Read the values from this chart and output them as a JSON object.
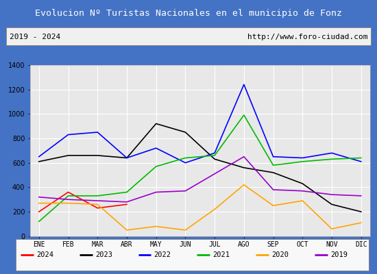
{
  "title": "Evolucion Nº Turistas Nacionales en el municipio de Fonz",
  "subtitle_left": "2019 - 2024",
  "subtitle_right": "http://www.foro-ciudad.com",
  "months": [
    "ENE",
    "FEB",
    "MAR",
    "ABR",
    "MAY",
    "JUN",
    "JUL",
    "AGO",
    "SEP",
    "OCT",
    "NOV",
    "DIC"
  ],
  "series": {
    "2024": [
      200,
      360,
      230,
      260,
      null,
      null,
      null,
      null,
      null,
      null,
      null,
      null
    ],
    "2023": [
      610,
      660,
      660,
      640,
      920,
      850,
      630,
      560,
      520,
      430,
      260,
      200
    ],
    "2022": [
      650,
      830,
      850,
      640,
      720,
      600,
      680,
      1240,
      650,
      640,
      680,
      610
    ],
    "2021": [
      120,
      330,
      330,
      360,
      570,
      640,
      660,
      990,
      580,
      610,
      630,
      640
    ],
    "2020": [
      270,
      270,
      260,
      50,
      80,
      50,
      220,
      420,
      250,
      290,
      60,
      110
    ],
    "2019": [
      320,
      300,
      290,
      280,
      360,
      370,
      510,
      650,
      380,
      370,
      340,
      330
    ]
  },
  "colors": {
    "2024": "#ff0000",
    "2023": "#000000",
    "2022": "#0000ff",
    "2021": "#00bb00",
    "2020": "#ffa500",
    "2019": "#9900cc"
  },
  "ylim": [
    0,
    1400
  ],
  "yticks": [
    0,
    200,
    400,
    600,
    800,
    1000,
    1200,
    1400
  ],
  "title_bg_color": "#4472c4",
  "title_text_color": "#ffffff",
  "plot_bg_color": "#e8e8e8",
  "grid_color": "#ffffff",
  "outer_bg_color": "#4472c4",
  "inner_bg_color": "#f0f0f0"
}
